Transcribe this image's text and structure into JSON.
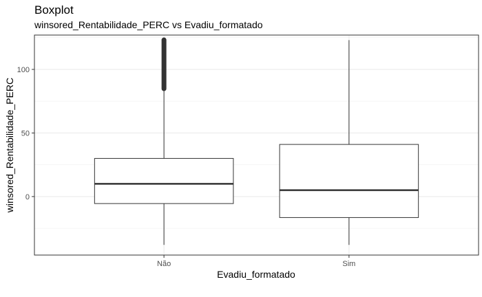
{
  "chart_data": {
    "type": "boxplot",
    "title": "Boxplot",
    "subtitle": "winsored_Rentabilidade_PERC vs Evadiu_formatado",
    "xlabel": "Evadiu_formatado",
    "ylabel": "winsored_Rentabilidade_PERC",
    "categories": [
      "Não",
      "Sim"
    ],
    "y_ticks": [
      0,
      50,
      100
    ],
    "ylim": [
      -46,
      127
    ],
    "grid": true,
    "boxes": [
      {
        "category": "Não",
        "whisker_low": -38,
        "q1": -5.5,
        "median": 10,
        "q3": 30,
        "whisker_high": 84,
        "outliers_range": [
          84,
          124
        ]
      },
      {
        "category": "Sim",
        "whisker_low": -38,
        "q1": -16.5,
        "median": 5,
        "q3": 41,
        "whisker_high": 123,
        "outliers_range": []
      }
    ]
  }
}
